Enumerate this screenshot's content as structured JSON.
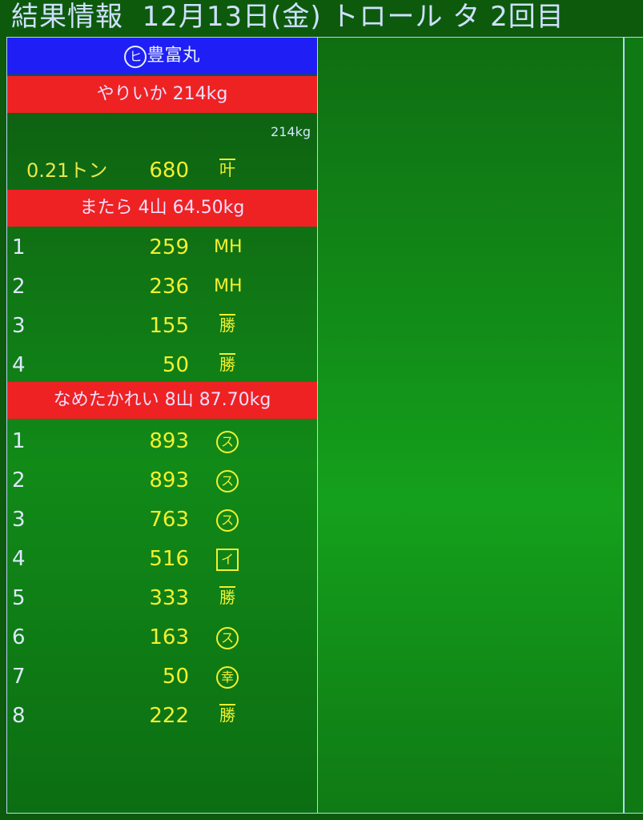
{
  "header": {
    "title": "結果情報  12月13日(金) トロール タ 2回目"
  },
  "vessel": {
    "mark": "ヒ",
    "name": "豊富丸"
  },
  "sections": [
    {
      "label": "やりいか 214kg",
      "subtotal": "214kg",
      "rows": [
        {
          "no": "0.21トン",
          "price": "680",
          "buyer": "叶"
        }
      ]
    },
    {
      "label": "またら 4山 64.50kg",
      "rows": [
        {
          "no": "1",
          "price": "259",
          "buyer": "MH"
        },
        {
          "no": "2",
          "price": "236",
          "buyer": "MH"
        },
        {
          "no": "3",
          "price": "155",
          "buyer": "勝"
        },
        {
          "no": "4",
          "price": "50",
          "buyer": "勝"
        }
      ]
    },
    {
      "label": "なめたかれい 8山 87.70kg",
      "rows": [
        {
          "no": "1",
          "price": "893",
          "buyer": "ス"
        },
        {
          "no": "2",
          "price": "893",
          "buyer": "ス"
        },
        {
          "no": "3",
          "price": "763",
          "buyer": "ス"
        },
        {
          "no": "4",
          "price": "516",
          "buyer": "イ"
        },
        {
          "no": "5",
          "price": "333",
          "buyer": "勝"
        },
        {
          "no": "6",
          "price": "163",
          "buyer": "ス"
        },
        {
          "no": "7",
          "price": "50",
          "buyer": "幸"
        },
        {
          "no": "8",
          "price": "222",
          "buyer": "勝"
        }
      ]
    }
  ],
  "colors": {
    "background": "#118a18",
    "vessel_bar": "#1f1ff5",
    "section_bar": "#ee2222",
    "price": "#f2f030"
  }
}
